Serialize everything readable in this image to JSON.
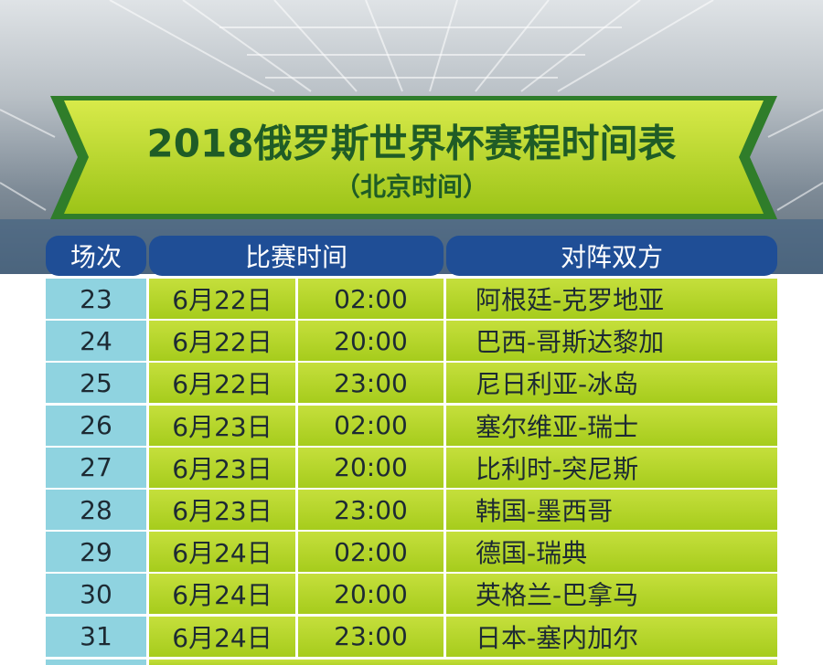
{
  "header": {
    "title": "2018俄罗斯世界杯赛程时间表",
    "subtitle": "（北京时间）"
  },
  "table": {
    "columns": [
      "场次",
      "比赛时间",
      "对阵双方"
    ],
    "rows": [
      [
        "23",
        "6月22日",
        "02:00",
        "阿根廷-克罗地亚"
      ],
      [
        "24",
        "6月22日",
        "20:00",
        "巴西-哥斯达黎加"
      ],
      [
        "25",
        "6月22日",
        "23:00",
        "尼日利亚-冰岛"
      ],
      [
        "26",
        "6月23日",
        "02:00",
        "塞尔维亚-瑞士"
      ],
      [
        "27",
        "6月23日",
        "20:00",
        "比利时-突尼斯"
      ],
      [
        "28",
        "6月23日",
        "23:00",
        "韩国-墨西哥"
      ],
      [
        "29",
        "6月24日",
        "02:00",
        "德国-瑞典"
      ],
      [
        "30",
        "6月24日",
        "20:00",
        "英格兰-巴拿马"
      ],
      [
        "31",
        "6月24日",
        "23:00",
        "日本-塞内加尔"
      ]
    ]
  }
}
